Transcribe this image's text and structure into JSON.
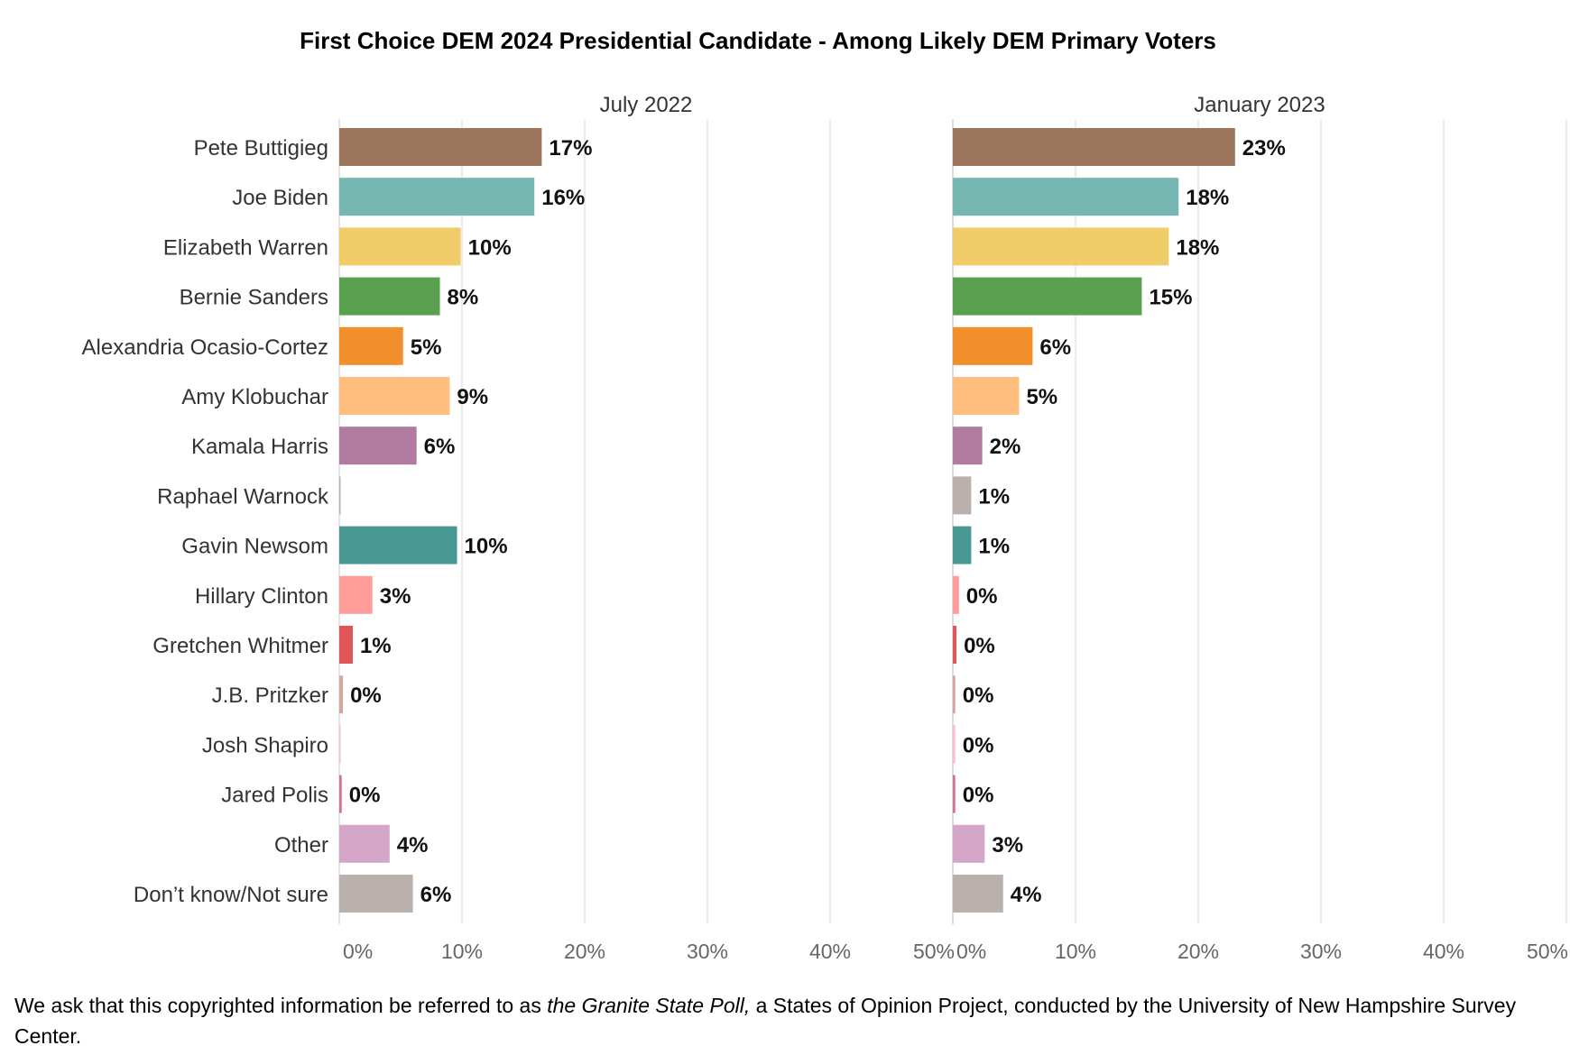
{
  "title": "First Choice DEM 2024 Presidential Candidate - Among Likely DEM Primary Voters",
  "footnote": {
    "before": "We ask that this copyrighted information be referred to as ",
    "italic": "the Granite State Poll,",
    "after": " a States of Opinion Project, conducted by the University of New Hampshire Survey Center."
  },
  "chart_data": {
    "type": "bar",
    "orientation": "horizontal",
    "categories": [
      "Pete Buttigieg",
      "Joe Biden",
      "Elizabeth Warren",
      "Bernie Sanders",
      "Alexandria Ocasio-Cortez",
      "Amy Klobuchar",
      "Kamala Harris",
      "Raphael Warnock",
      "Gavin Newsom",
      "Hillary Clinton",
      "Gretchen Whitmer",
      "J.B. Pritzker",
      "Josh Shapiro",
      "Jared Polis",
      "Other",
      "Don’t know/Not sure"
    ],
    "colors": [
      "#9c775e",
      "#76b7b2",
      "#f0cd69",
      "#59a14f",
      "#f28e2b",
      "#ffbe7d",
      "#b07aa1",
      "#bab0ac",
      "#499894",
      "#ff9d9a",
      "#e15759",
      "#d4a6a0",
      "#fabfd2",
      "#d37295",
      "#d4a6c8",
      "#bab0ac"
    ],
    "panels": [
      {
        "name": "July 2022",
        "values": [
          16.5,
          15.9,
          9.9,
          8.2,
          5.2,
          9.0,
          6.3,
          0.1,
          9.6,
          2.7,
          1.1,
          0.3,
          0.1,
          0.2,
          4.1,
          6.0
        ],
        "labels": [
          "17%",
          "16%",
          "10%",
          "8%",
          "5%",
          "9%",
          "6%",
          "",
          "10%",
          "3%",
          "1%",
          "0%",
          "",
          "0%",
          "4%",
          "6%"
        ]
      },
      {
        "name": "January 2023",
        "values": [
          23.0,
          18.4,
          17.6,
          15.4,
          6.5,
          5.4,
          2.4,
          1.5,
          1.5,
          0.5,
          0.3,
          0.2,
          0.2,
          0.2,
          2.6,
          4.1
        ],
        "labels": [
          "23%",
          "18%",
          "18%",
          "15%",
          "6%",
          "5%",
          "2%",
          "1%",
          "1%",
          "0%",
          "0%",
          "0%",
          "0%",
          "0%",
          "3%",
          "4%"
        ]
      }
    ],
    "xlim": [
      0,
      50
    ],
    "ticks": [
      "0%",
      "10%",
      "20%",
      "30%",
      "40%",
      "50%"
    ],
    "grid": true
  }
}
